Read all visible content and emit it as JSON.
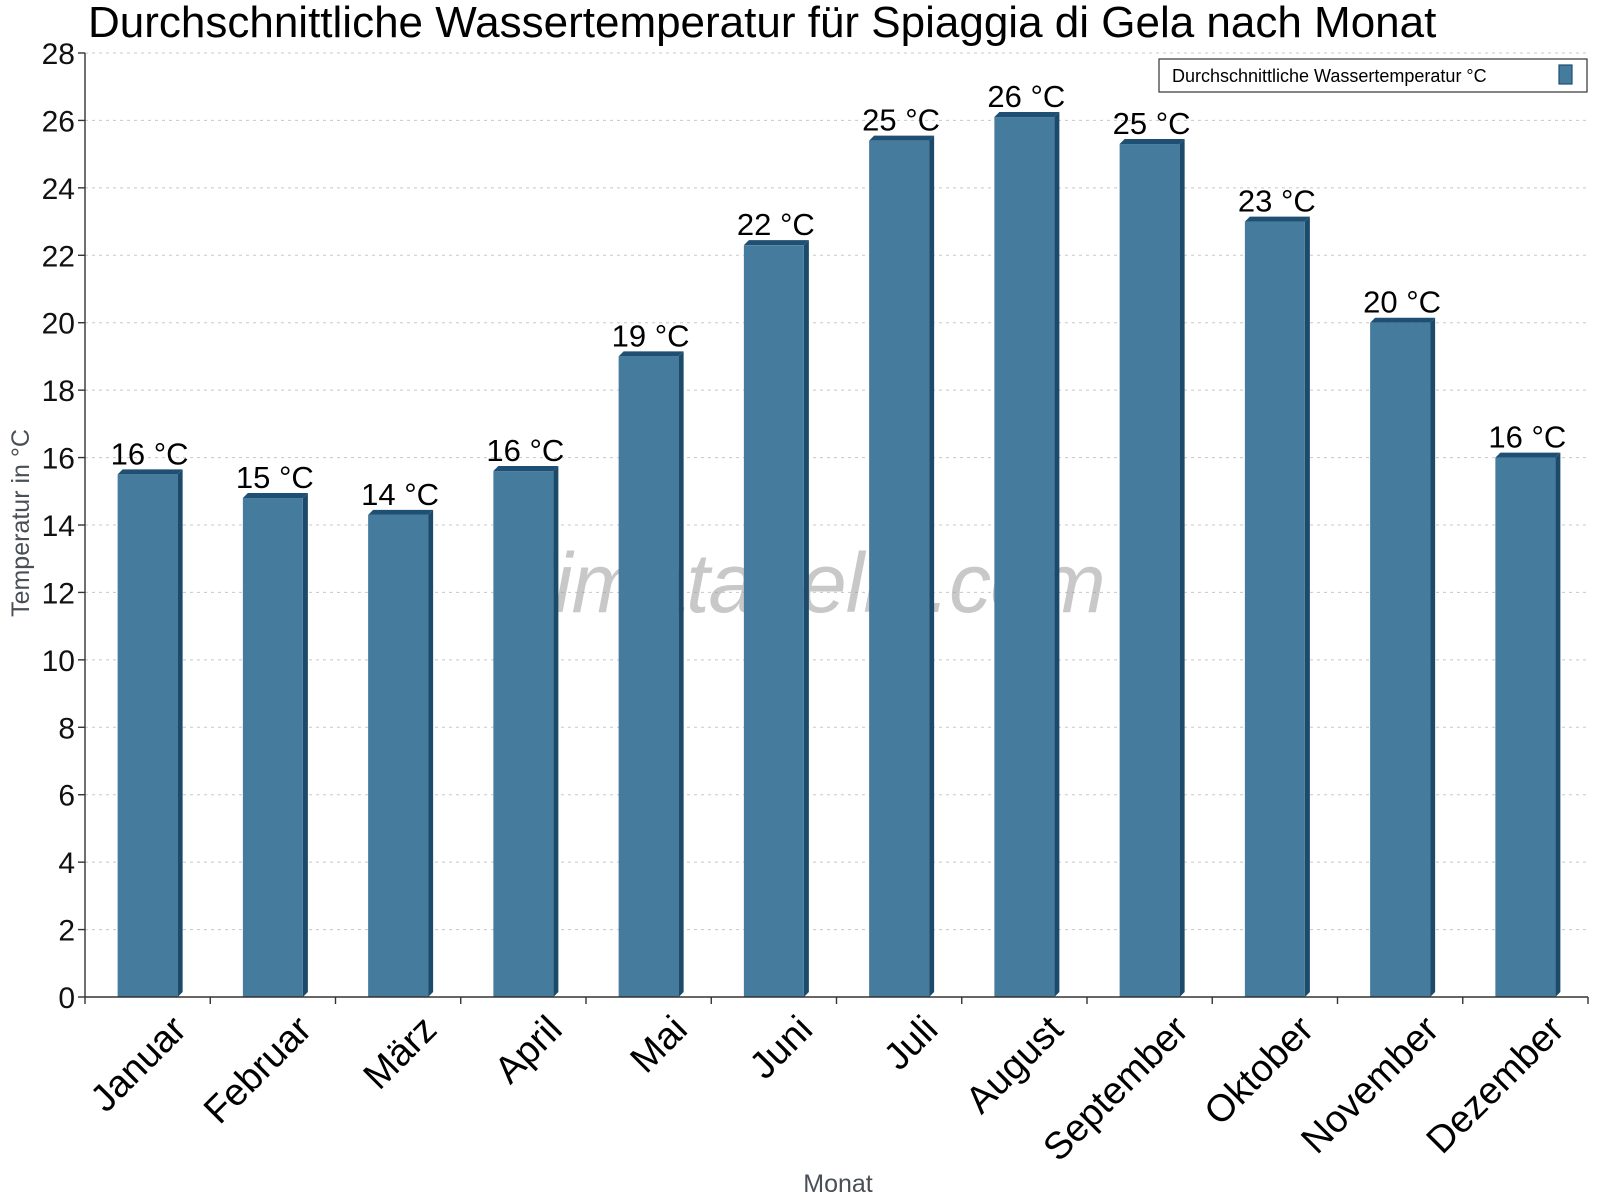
{
  "chart_data": {
    "type": "bar",
    "title": "Durchschnittliche Wassertemperatur für Spiaggia di Gela nach Monat",
    "xlabel": "Monat",
    "ylabel": "Temperatur in °C",
    "ylim": [
      0,
      28
    ],
    "yticks": [
      0,
      2,
      4,
      6,
      8,
      10,
      12,
      14,
      16,
      18,
      20,
      22,
      24,
      26,
      28
    ],
    "grid": true,
    "legend_position": "top-right",
    "categories": [
      "Januar",
      "Februar",
      "März",
      "April",
      "Mai",
      "Juni",
      "Juli",
      "August",
      "September",
      "Oktober",
      "November",
      "Dezember"
    ],
    "series": [
      {
        "name": "Durchschnittliche Wassertemperatur °C",
        "color": "#457b9d",
        "values": [
          15.5,
          14.8,
          14.3,
          15.6,
          19.0,
          22.3,
          25.4,
          26.1,
          25.3,
          23.0,
          20.0,
          16.0
        ],
        "labels": [
          "16 °C",
          "15 °C",
          "14 °C",
          "16 °C",
          "19 °C",
          "22 °C",
          "25 °C",
          "26 °C",
          "25 °C",
          "23 °C",
          "20 °C",
          "16 °C"
        ]
      }
    ],
    "watermark": "klimatabelle.com"
  }
}
